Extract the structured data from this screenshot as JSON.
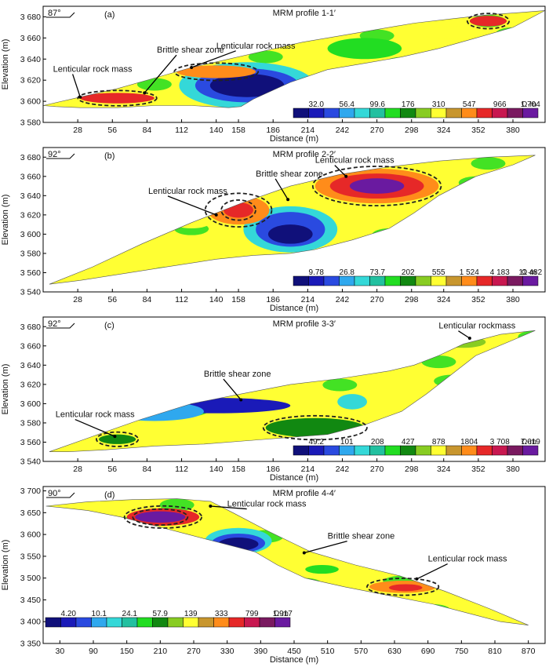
{
  "colorbar_colors": [
    "#10107a",
    "#1a1ab8",
    "#2a4ae0",
    "#2fa8ee",
    "#34d8d8",
    "#22c0a0",
    "#22dd22",
    "#118811",
    "#88cc22",
    "#ffff33",
    "#c8962e",
    "#ff8c1a",
    "#e62828",
    "#c81850",
    "#7a1a60",
    "#6a1aa0"
  ],
  "chart_data": [
    {
      "type": "heatmap",
      "panel": "(a)",
      "title": "MRM  profile 1-1′",
      "angle": "87°",
      "xlabel": "Distance (m)",
      "ylabel": "Elevation (m)",
      "xlim": [
        0,
        406
      ],
      "ylim": [
        3580,
        3690
      ],
      "xticks": [
        28,
        56,
        84,
        112,
        140,
        158,
        186,
        214,
        242,
        270,
        298,
        324,
        352,
        380
      ],
      "xtick_labels": [
        "28",
        "56",
        "84",
        "112",
        "140",
        "158",
        "186",
        "214",
        "242",
        "270",
        "298",
        "324",
        "352",
        "380"
      ],
      "yticks": [
        3580,
        3600,
        3620,
        3640,
        3660,
        3680
      ],
      "ytick_labels": [
        "3 580",
        "3 600",
        "3 620",
        "3 640",
        "3 660",
        "3 680"
      ],
      "colorbar": {
        "labels": [
          "32.0",
          "56.4",
          "99.6",
          "176",
          "310",
          "547",
          "966",
          "1 704"
        ],
        "unit": "Ω·m"
      },
      "outline": [
        [
          0,
          3596
        ],
        [
          30,
          3604
        ],
        [
          60,
          3612
        ],
        [
          90,
          3622
        ],
        [
          120,
          3632
        ],
        [
          150,
          3640
        ],
        [
          180,
          3648
        ],
        [
          210,
          3656
        ],
        [
          240,
          3662
        ],
        [
          270,
          3668
        ],
        [
          300,
          3674
        ],
        [
          330,
          3678
        ],
        [
          360,
          3682
        ],
        [
          385,
          3684
        ],
        [
          406,
          3686
        ],
        [
          380,
          3670
        ],
        [
          350,
          3660
        ],
        [
          320,
          3650
        ],
        [
          290,
          3642
        ],
        [
          260,
          3636
        ],
        [
          230,
          3630
        ],
        [
          200,
          3618
        ],
        [
          170,
          3602
        ],
        [
          160,
          3595
        ],
        [
          150,
          3594
        ],
        [
          120,
          3596
        ],
        [
          90,
          3596
        ],
        [
          60,
          3594
        ],
        [
          30,
          3594
        ],
        [
          10,
          3595
        ]
      ],
      "blobs": [
        {
          "cx": 165,
          "cy": 3615,
          "rx": 55,
          "ry": 22,
          "c": 4
        },
        {
          "cx": 165,
          "cy": 3615,
          "rx": 42,
          "ry": 16,
          "c": 2
        },
        {
          "cx": 165,
          "cy": 3615,
          "rx": 30,
          "ry": 11,
          "c": 0
        },
        {
          "cx": 140,
          "cy": 3628,
          "rx": 32,
          "ry": 6,
          "c": 11
        },
        {
          "cx": 60,
          "cy": 3603,
          "rx": 30,
          "ry": 5,
          "c": 12
        },
        {
          "cx": 260,
          "cy": 3650,
          "rx": 30,
          "ry": 10,
          "c": 6
        },
        {
          "cx": 330,
          "cy": 3665,
          "rx": 25,
          "ry": 6,
          "c": 9
        },
        {
          "cx": 360,
          "cy": 3676,
          "rx": 15,
          "ry": 5,
          "c": 12
        }
      ],
      "annotations": [
        {
          "text": "Lenticular rock mass",
          "x": 140,
          "y": 3650,
          "ax": 120,
          "ay": 3632
        },
        {
          "text": "Brittle shear zone",
          "x": 92,
          "y": 3646,
          "ax": 82,
          "ay": 3608
        },
        {
          "text": "Lenticular rock mass",
          "x": 8,
          "y": 3628,
          "ax": 30,
          "ay": 3604
        }
      ]
    },
    {
      "type": "heatmap",
      "panel": "(b)",
      "title": "MRM  profile 2-2′",
      "angle": "92°",
      "xlabel": "Distance (m)",
      "ylabel": "Elevation (m)",
      "xlim": [
        0,
        406
      ],
      "ylim": [
        3540,
        3690
      ],
      "xticks": [
        28,
        56,
        84,
        112,
        140,
        158,
        186,
        214,
        242,
        270,
        298,
        324,
        352,
        380
      ],
      "xtick_labels": [
        "28",
        "56",
        "84",
        "112",
        "140",
        "158",
        "186",
        "214",
        "242",
        "270",
        "298",
        "324",
        "352",
        "380"
      ],
      "yticks": [
        3540,
        3560,
        3580,
        3600,
        3620,
        3640,
        3660,
        3680
      ],
      "ytick_labels": [
        "3 540",
        "3 560",
        "3 580",
        "3 600",
        "3 620",
        "3 640",
        "3 660",
        "3 680"
      ],
      "colorbar": {
        "labels": [
          "9.78",
          "26.8",
          "73.7",
          "202",
          "555",
          "1 524",
          "4 183",
          "11 482"
        ],
        "unit": "Ω·m"
      },
      "outline": [
        [
          5,
          3548
        ],
        [
          40,
          3566
        ],
        [
          80,
          3590
        ],
        [
          120,
          3612
        ],
        [
          160,
          3632
        ],
        [
          200,
          3650
        ],
        [
          240,
          3662
        ],
        [
          280,
          3670
        ],
        [
          320,
          3676
        ],
        [
          360,
          3680
        ],
        [
          398,
          3682
        ],
        [
          380,
          3672
        ],
        [
          350,
          3660
        ],
        [
          320,
          3640
        ],
        [
          300,
          3622
        ],
        [
          280,
          3606
        ],
        [
          250,
          3594
        ],
        [
          220,
          3584
        ],
        [
          200,
          3580
        ],
        [
          170,
          3578
        ],
        [
          140,
          3574
        ],
        [
          100,
          3566
        ],
        [
          60,
          3558
        ],
        [
          30,
          3552
        ]
      ],
      "blobs": [
        {
          "cx": 200,
          "cy": 3605,
          "rx": 38,
          "ry": 24,
          "c": 4
        },
        {
          "cx": 200,
          "cy": 3605,
          "rx": 28,
          "ry": 18,
          "c": 2
        },
        {
          "cx": 200,
          "cy": 3600,
          "rx": 18,
          "ry": 10,
          "c": 0
        },
        {
          "cx": 158,
          "cy": 3625,
          "rx": 25,
          "ry": 15,
          "c": 11
        },
        {
          "cx": 158,
          "cy": 3625,
          "rx": 12,
          "ry": 8,
          "c": 12
        },
        {
          "cx": 270,
          "cy": 3650,
          "rx": 50,
          "ry": 18,
          "c": 11
        },
        {
          "cx": 270,
          "cy": 3650,
          "rx": 38,
          "ry": 13,
          "c": 12
        },
        {
          "cx": 270,
          "cy": 3650,
          "rx": 22,
          "ry": 8,
          "c": 15
        },
        {
          "cx": 120,
          "cy": 3612,
          "rx": 15,
          "ry": 6,
          "c": 9
        }
      ],
      "annotations": [
        {
          "text": "Lenticular rock mass",
          "x": 220,
          "y": 3674,
          "ax": 245,
          "ay": 3660
        },
        {
          "text": "Brittle shear zone",
          "x": 172,
          "y": 3660,
          "ax": 198,
          "ay": 3636
        },
        {
          "text": "Lenticular rock mass",
          "x": 85,
          "y": 3642,
          "ax": 140,
          "ay": 3620
        }
      ]
    },
    {
      "type": "heatmap",
      "panel": "(c)",
      "title": "MRM  profile 3-3′",
      "angle": "92°",
      "xlabel": "Distance (m)",
      "ylabel": "Elevation (m)",
      "xlim": [
        0,
        406
      ],
      "ylim": [
        3540,
        3690
      ],
      "xticks": [
        28,
        56,
        84,
        112,
        140,
        158,
        186,
        214,
        242,
        270,
        298,
        324,
        352,
        380
      ],
      "xtick_labels": [
        "28",
        "56",
        "84",
        "112",
        "140",
        "158",
        "186",
        "214",
        "242",
        "270",
        "298",
        "324",
        "352",
        "380"
      ],
      "yticks": [
        3540,
        3560,
        3580,
        3600,
        3620,
        3640,
        3660,
        3680
      ],
      "ytick_labels": [
        "3 540",
        "3 560",
        "3 580",
        "3 600",
        "3 620",
        "3 640",
        "3 660",
        "3 680"
      ],
      "colorbar": {
        "labels": [
          "49.2",
          "101",
          "208",
          "427",
          "878",
          "1804",
          "3 708",
          "7 619"
        ],
        "unit": "Ω·m"
      },
      "outline": [
        [
          5,
          3550
        ],
        [
          40,
          3566
        ],
        [
          80,
          3584
        ],
        [
          120,
          3600
        ],
        [
          160,
          3610
        ],
        [
          200,
          3620
        ],
        [
          240,
          3626
        ],
        [
          280,
          3634
        ],
        [
          300,
          3640
        ],
        [
          320,
          3650
        ],
        [
          340,
          3662
        ],
        [
          370,
          3672
        ],
        [
          398,
          3676
        ],
        [
          380,
          3666
        ],
        [
          350,
          3650
        ],
        [
          330,
          3630
        ],
        [
          310,
          3610
        ],
        [
          290,
          3592
        ],
        [
          260,
          3578
        ],
        [
          230,
          3568
        ],
        [
          200,
          3565
        ],
        [
          170,
          3562
        ],
        [
          130,
          3558
        ],
        [
          90,
          3556
        ],
        [
          50,
          3552
        ],
        [
          20,
          3550
        ]
      ],
      "blobs": [
        {
          "cx": 140,
          "cy": 3598,
          "rx": 60,
          "ry": 8,
          "c": 1
        },
        {
          "cx": 90,
          "cy": 3592,
          "rx": 40,
          "ry": 10,
          "c": 3
        },
        {
          "cx": 220,
          "cy": 3575,
          "rx": 40,
          "ry": 10,
          "c": 7
        },
        {
          "cx": 60,
          "cy": 3563,
          "rx": 15,
          "ry": 5,
          "c": 7
        },
        {
          "cx": 250,
          "cy": 3602,
          "rx": 12,
          "ry": 8,
          "c": 4
        },
        {
          "cx": 340,
          "cy": 3664,
          "rx": 18,
          "ry": 6,
          "c": 8
        }
      ],
      "annotations": [
        {
          "text": "Lenticular rockmass",
          "x": 320,
          "y": 3678,
          "ax": 345,
          "ay": 3668
        },
        {
          "text": "Brittle shear zone",
          "x": 130,
          "y": 3628,
          "ax": 160,
          "ay": 3604
        },
        {
          "text": "Lenticular rock mass",
          "x": 10,
          "y": 3586,
          "ax": 58,
          "ay": 3566
        }
      ]
    },
    {
      "type": "heatmap",
      "panel": "(d)",
      "title": "MRM  profile 4-4′",
      "angle": "90°",
      "xlabel": "Distance (m)",
      "ylabel": "Elevation (m)",
      "xlim": [
        0,
        900
      ],
      "ylim": [
        3350,
        3710
      ],
      "xticks": [
        30,
        90,
        150,
        210,
        270,
        330,
        390,
        450,
        510,
        570,
        630,
        690,
        750,
        810,
        870
      ],
      "xtick_labels": [
        "30",
        "90",
        "150",
        "210",
        "270",
        "330",
        "390",
        "450",
        "510",
        "570",
        "630",
        "690",
        "750",
        "810",
        "870"
      ],
      "yticks": [
        3350,
        3400,
        3450,
        3500,
        3550,
        3600,
        3650,
        3700
      ],
      "ytick_labels": [
        "3 350",
        "3 400",
        "3 450",
        "3 500",
        "3 550",
        "3 600",
        "3 650",
        "3 700"
      ],
      "colorbar": {
        "labels": [
          "4.20",
          "10.1",
          "24.1",
          "57.9",
          "139",
          "333",
          "799",
          "1 917"
        ],
        "unit": "Ω·m"
      },
      "outline": [
        [
          5,
          3665
        ],
        [
          80,
          3675
        ],
        [
          160,
          3680
        ],
        [
          240,
          3682
        ],
        [
          300,
          3676
        ],
        [
          340,
          3650
        ],
        [
          400,
          3610
        ],
        [
          480,
          3560
        ],
        [
          560,
          3530
        ],
        [
          640,
          3505
        ],
        [
          720,
          3470
        ],
        [
          800,
          3430
        ],
        [
          870,
          3392
        ],
        [
          820,
          3400
        ],
        [
          760,
          3420
        ],
        [
          700,
          3440
        ],
        [
          620,
          3460
        ],
        [
          540,
          3480
        ],
        [
          470,
          3500
        ],
        [
          420,
          3530
        ],
        [
          380,
          3560
        ],
        [
          320,
          3580
        ],
        [
          260,
          3600
        ],
        [
          200,
          3620
        ],
        [
          140,
          3640
        ],
        [
          80,
          3655
        ],
        [
          30,
          3662
        ]
      ],
      "blobs": [
        {
          "cx": 350,
          "cy": 3585,
          "rx": 60,
          "ry": 30,
          "c": 4
        },
        {
          "cx": 350,
          "cy": 3580,
          "rx": 48,
          "ry": 22,
          "c": 2
        },
        {
          "cx": 350,
          "cy": 3578,
          "rx": 36,
          "ry": 15,
          "c": 0
        },
        {
          "cx": 215,
          "cy": 3640,
          "rx": 65,
          "ry": 20,
          "c": 12
        },
        {
          "cx": 210,
          "cy": 3640,
          "rx": 45,
          "ry": 13,
          "c": 15
        },
        {
          "cx": 645,
          "cy": 3480,
          "rx": 60,
          "ry": 14,
          "c": 11
        },
        {
          "cx": 650,
          "cy": 3478,
          "rx": 30,
          "ry": 8,
          "c": 12
        },
        {
          "cx": 500,
          "cy": 3520,
          "rx": 30,
          "ry": 10,
          "c": 6
        }
      ],
      "annotations": [
        {
          "text": "Lenticular rock mass",
          "x": 330,
          "y": 3664,
          "ax": 300,
          "ay": 3665
        },
        {
          "text": "Brittle shear zone",
          "x": 510,
          "y": 3590,
          "ax": 468,
          "ay": 3558
        },
        {
          "text": "Lenticular rock mass",
          "x": 690,
          "y": 3538,
          "ax": 670,
          "ay": 3498
        }
      ]
    }
  ]
}
